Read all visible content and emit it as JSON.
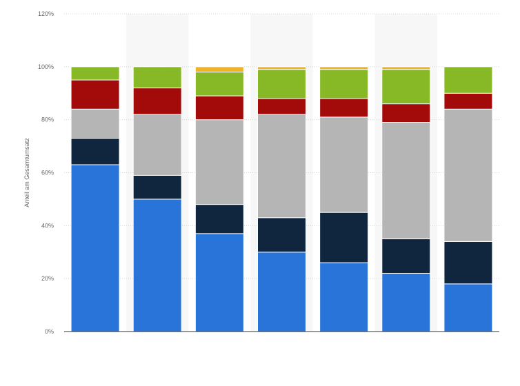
{
  "chart_data": {
    "type": "bar",
    "stacked": true,
    "ylabel": "Anteil am Gesamtumsatz",
    "ylim": [
      0,
      120
    ],
    "yticks": [
      "0%",
      "20%",
      "40%",
      "60%",
      "80%",
      "100%",
      "120%"
    ],
    "grid": true,
    "categories": [
      "",
      "",
      "",
      "",
      "",
      "",
      ""
    ],
    "series": [
      {
        "color": "#2874d9",
        "values": [
          63,
          50,
          37,
          30,
          26,
          22,
          18
        ]
      },
      {
        "color": "#0f263e",
        "values": [
          10,
          9,
          11,
          13,
          19,
          13,
          16
        ]
      },
      {
        "color": "#b5b5b5",
        "values": [
          11,
          23,
          32,
          39,
          36,
          44,
          50
        ]
      },
      {
        "color": "#a30b0b",
        "values": [
          11,
          10,
          9,
          6,
          7,
          7,
          6
        ]
      },
      {
        "color": "#87b825",
        "values": [
          5,
          8,
          9,
          11,
          11,
          13,
          10
        ]
      },
      {
        "color": "#f0b323",
        "values": [
          0,
          0,
          2,
          1,
          1,
          1,
          0
        ]
      }
    ]
  }
}
